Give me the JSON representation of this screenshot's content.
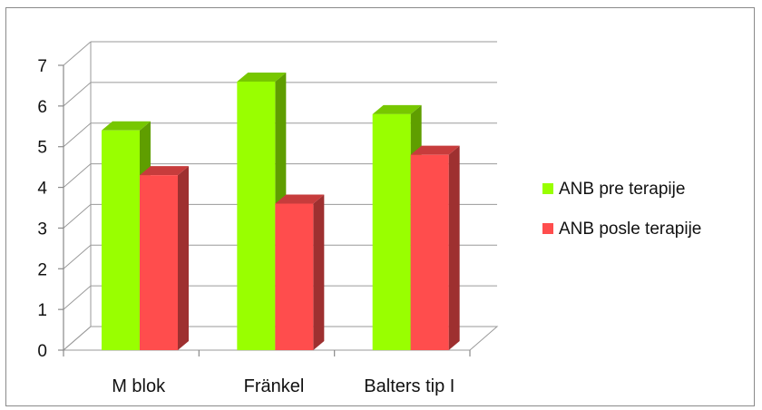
{
  "chart_data": {
    "type": "bar",
    "categories": [
      "M blok",
      "Fränkel",
      "Balters tip I"
    ],
    "series": [
      {
        "name": "ANB pre terapije",
        "values": [
          5.4,
          6.6,
          5.8
        ],
        "color": "#99ff00"
      },
      {
        "name": "ANB posle terapije",
        "values": [
          4.3,
          3.6,
          4.8
        ],
        "color": "#ff4d4d"
      }
    ],
    "ylim": [
      0,
      7
    ],
    "yticks": [
      "0",
      "1",
      "2",
      "3",
      "4",
      "5",
      "6",
      "7"
    ],
    "grid": true,
    "legend": "right",
    "style": "3d-clustered-column"
  }
}
